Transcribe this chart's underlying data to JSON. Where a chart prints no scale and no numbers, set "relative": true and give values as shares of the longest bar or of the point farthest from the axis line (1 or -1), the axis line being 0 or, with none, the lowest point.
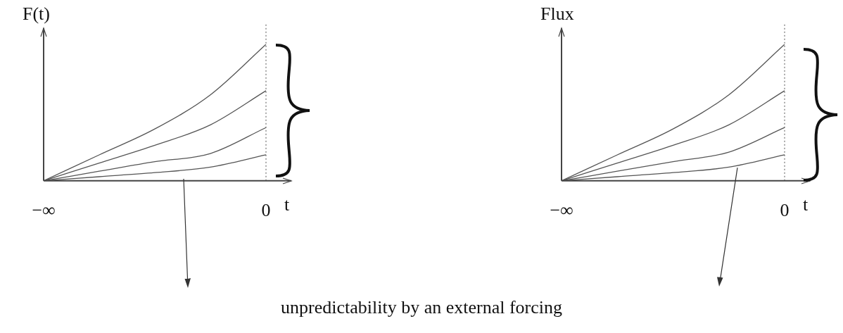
{
  "chart_data": [
    {
      "type": "line",
      "ylabel": "F(t)",
      "xlabel": "t",
      "relative": true,
      "tick_labels": "x",
      "categories": [
        "−∞",
        null,
        null,
        null,
        "0"
      ],
      "series": [
        {
          "color": "#555555",
          "values": [
            0,
            0.19,
            0.38,
            0.63,
            1
          ]
        },
        {
          "color": "#555555",
          "values": [
            0,
            0.13,
            0.26,
            0.41,
            0.66
          ]
        },
        {
          "color": "#555555",
          "values": [
            0,
            0.07,
            0.14,
            0.2,
            0.39
          ]
        },
        {
          "color": "#555555",
          "values": [
            0,
            0.03,
            0.06,
            0.1,
            0.19
          ]
        }
      ],
      "ref_lines": [
        {
          "axis": "x",
          "value": "0",
          "line_style": "dotted",
          "color": "#555555"
        }
      ],
      "annotations": [
        "unpredictability by an external forcing"
      ]
    },
    {
      "type": "line",
      "ylabel": "Flux",
      "xlabel": "t",
      "relative": true,
      "tick_labels": "x",
      "categories": [
        "−∞",
        null,
        null,
        null,
        "0"
      ],
      "series": [
        {
          "color": "#555555",
          "values": [
            0,
            0.19,
            0.38,
            0.63,
            1
          ]
        },
        {
          "color": "#555555",
          "values": [
            0,
            0.13,
            0.26,
            0.41,
            0.66
          ]
        },
        {
          "color": "#555555",
          "values": [
            0,
            0.07,
            0.14,
            0.21,
            0.39
          ]
        },
        {
          "color": "#555555",
          "values": [
            0,
            0.03,
            0.06,
            0.1,
            0.19
          ]
        }
      ],
      "ref_lines": [
        {
          "axis": "x",
          "value": "0",
          "line_style": "dotted",
          "color": "#555555"
        }
      ]
    }
  ]
}
